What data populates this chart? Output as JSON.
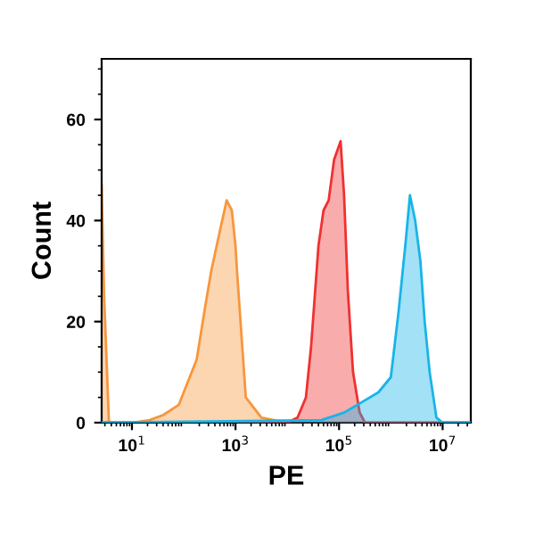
{
  "chart_data": {
    "type": "area",
    "xlabel": "PE",
    "ylabel": "Count",
    "log": "x",
    "xlim": [
      2.6,
      35000000
    ],
    "ylim": [
      0,
      72
    ],
    "xticks": [
      {
        "value": 10,
        "label": "10$^{1}$"
      },
      {
        "value": 1000,
        "label": "10$^{3}$"
      },
      {
        "value": 100000,
        "label": "10$^{5}$"
      },
      {
        "value": 10000000,
        "label": "10$^{7}$"
      }
    ],
    "yticks": [
      0,
      20,
      40,
      60
    ],
    "grid": false,
    "series": [
      {
        "color": "#f7963c",
        "x": [
          2.6,
          2.9,
          3.6,
          10,
          22,
          40,
          80,
          178,
          260,
          340,
          500,
          676,
          850,
          1000,
          1070,
          1580,
          3160,
          10000,
          35000000
        ],
        "values": [
          47,
          25,
          0,
          0,
          0.5,
          1.5,
          3.5,
          12.5,
          23,
          30,
          38,
          44,
          42,
          35,
          30,
          5,
          1,
          0,
          0
        ]
      },
      {
        "color": "#f03030",
        "x": [
          2.6,
          10000,
          15800,
          22900,
          28800,
          40000,
          50100,
          63000,
          80000,
          107000,
          125000,
          148000,
          186000,
          250000,
          316000,
          35000000
        ],
        "values": [
          0,
          0,
          1,
          5,
          15,
          35,
          42,
          44,
          52,
          55.7,
          45,
          26,
          10,
          2,
          0,
          0
        ]
      },
      {
        "color": "#18b4e8",
        "x": [
          2.6,
          45700,
          126000,
          269000,
          575000,
          1000000,
          1410000,
          1900000,
          2340000,
          2950000,
          3720000,
          4500000,
          5620000,
          7590000,
          10000000,
          35000000
        ],
        "values": [
          0,
          0.5,
          2,
          4,
          6,
          9,
          22,
          35,
          45,
          40,
          32,
          20,
          10,
          1,
          0,
          0
        ]
      }
    ]
  }
}
